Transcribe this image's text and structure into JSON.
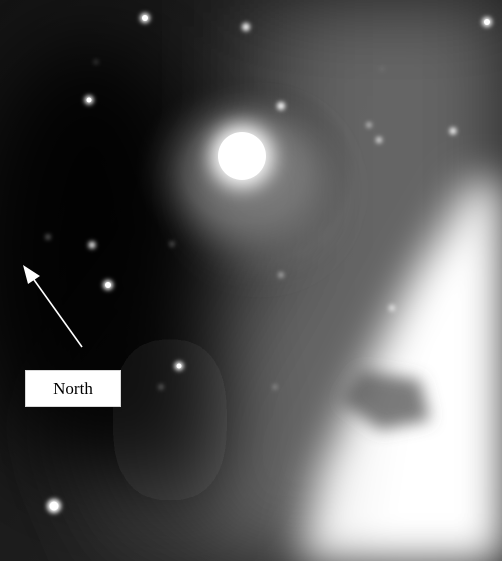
{
  "image": {
    "subject": "nebula",
    "label_text": "North",
    "colors": {
      "background": "#0a0a0a",
      "nebula_glow": "#ffffff",
      "arrow": "#ffffff",
      "label_bg": "#ffffff",
      "label_text": "#000000"
    },
    "icons": {
      "direction_arrow": "arrow-icon"
    }
  }
}
